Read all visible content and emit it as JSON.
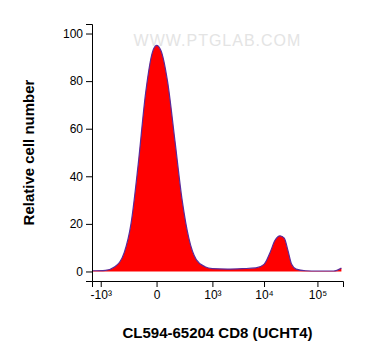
{
  "chart_data": {
    "type": "area",
    "x_label": "CL594-65204 CD8 (UCHT4)",
    "y_label": "Relative cell number",
    "annotations": [
      "WWW.PTGLAB.COM"
    ],
    "color": "#ff0000",
    "x": [
      -1500,
      -800,
      -500,
      -300,
      -200,
      -120,
      -60,
      -20,
      0,
      20,
      60,
      120,
      200,
      300,
      450,
      700,
      1000,
      2000,
      4000,
      7000,
      10000,
      13000,
      16000,
      20000,
      24000,
      28000,
      33000,
      40000,
      60000,
      100000,
      200000,
      280000
    ],
    "values": [
      0.3,
      0.5,
      2,
      8,
      20,
      45,
      75,
      92,
      95,
      93,
      80,
      55,
      30,
      14,
      5,
      2,
      1.2,
      1,
      1.2,
      1.5,
      3,
      8,
      13,
      15,
      14,
      9,
      3,
      1,
      0.3,
      0.2,
      0.2,
      1.5
    ],
    "xlim": [
      -1500,
      300000
    ],
    "xticks": [
      {
        "value": -1000,
        "label": "-10³"
      },
      0,
      {
        "value": 1000,
        "label": "10³"
      },
      {
        "value": 10000,
        "label": "10⁴"
      },
      {
        "value": 100000,
        "label": "10⁵"
      }
    ],
    "ylim": [
      -4,
      104
    ],
    "yticks": [
      0,
      20,
      40,
      60,
      80,
      100
    ]
  }
}
